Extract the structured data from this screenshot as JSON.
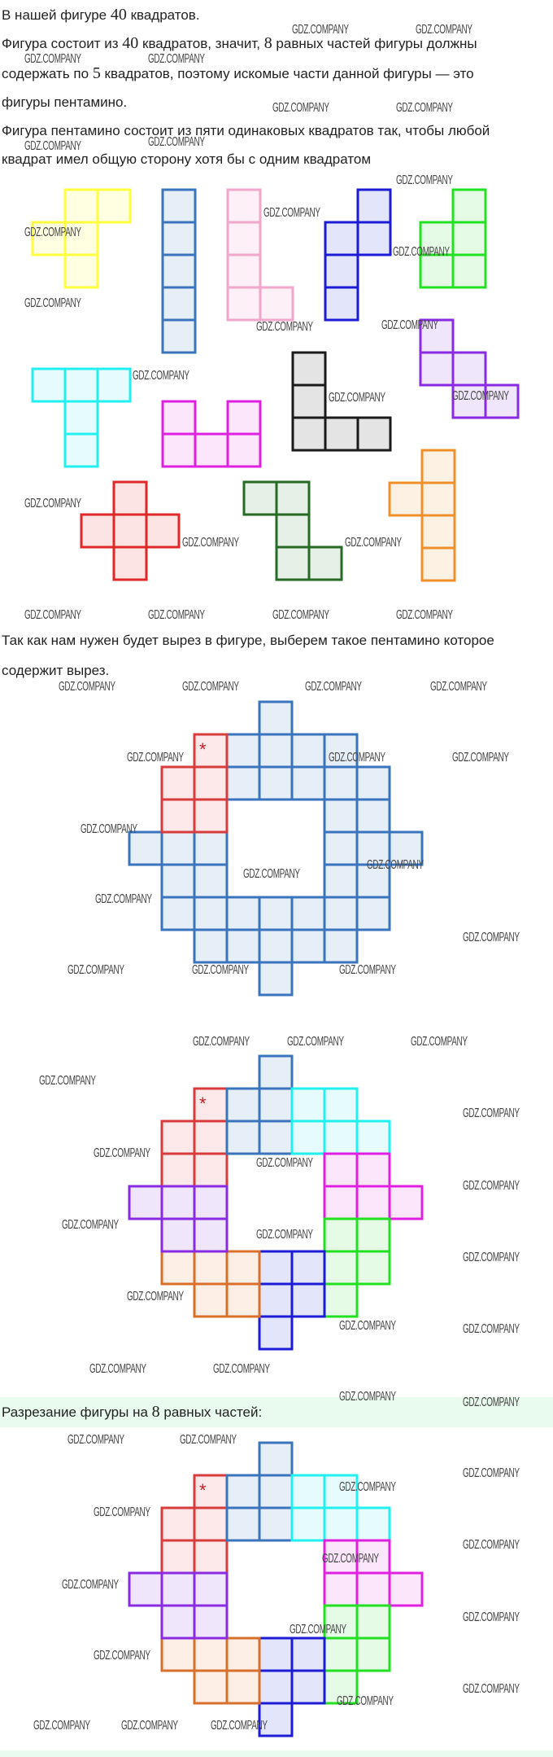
{
  "text": {
    "l1": {
      "a": "В нашей фигуре ",
      "n": "40",
      "b": " квадратов."
    },
    "l2": {
      "a": "Фигура состоит из ",
      "n1": "40",
      "b": " квадратов, значит, ",
      "n2": "8",
      "c": " равных частей фигуры должны"
    },
    "l3": {
      "a": "содержать по ",
      "n": "5",
      "b": " квадратов, поэтому искомые части данной фигуры — это"
    },
    "l4": "фигуры пентамино.",
    "l5": "Фигура пентамино состоит из пяти одинаковых квадратов так, чтобы любой",
    "l6": "квадрат имел общую сторону хотя бы с одним квадратом",
    "l7": "Так как нам нужен будет вырез в фигуре, выберем такое пентамино которое",
    "l8": "содержит вырез.",
    "l9": {
      "a": "Разрезание фигуры на ",
      "n": "8",
      "b": " равных частей:"
    }
  },
  "watermark": "GDZ.COMPANY",
  "marker": "*",
  "accent_band_color": "#e8fbee",
  "pentominoes": [
    {
      "name": "F",
      "stroke": "#ffff40",
      "fill": "#ffffe2",
      "cells": [
        [
          1,
          0
        ],
        [
          2,
          0
        ],
        [
          0,
          1
        ],
        [
          1,
          1
        ],
        [
          1,
          2
        ]
      ]
    },
    {
      "name": "I",
      "stroke": "#3a74bd",
      "fill": "#e6eef8",
      "cells": [
        [
          0,
          0
        ],
        [
          0,
          1
        ],
        [
          0,
          2
        ],
        [
          0,
          3
        ],
        [
          0,
          4
        ]
      ]
    },
    {
      "name": "L",
      "stroke": "#f2a6cc",
      "fill": "#fdf0f6",
      "cells": [
        [
          0,
          0
        ],
        [
          0,
          1
        ],
        [
          0,
          2
        ],
        [
          0,
          3
        ],
        [
          1,
          3
        ]
      ]
    },
    {
      "name": "N",
      "stroke": "#1c1cd6",
      "fill": "#e3e6fa",
      "cells": [
        [
          1,
          0
        ],
        [
          0,
          1
        ],
        [
          1,
          1
        ],
        [
          0,
          2
        ],
        [
          0,
          3
        ]
      ]
    },
    {
      "name": "P",
      "stroke": "#22e022",
      "fill": "#e6fbe6",
      "cells": [
        [
          1,
          0
        ],
        [
          0,
          1
        ],
        [
          1,
          1
        ],
        [
          0,
          2
        ],
        [
          1,
          2
        ]
      ]
    },
    {
      "name": "W",
      "stroke": "#8a2be2",
      "fill": "#f0e6fc",
      "cells": [
        [
          0,
          0
        ],
        [
          0,
          1
        ],
        [
          1,
          1
        ],
        [
          1,
          2
        ],
        [
          2,
          2
        ]
      ]
    },
    {
      "name": "T",
      "stroke": "#22f0f0",
      "fill": "#e6fcfc",
      "cells": [
        [
          0,
          0
        ],
        [
          1,
          0
        ],
        [
          2,
          0
        ],
        [
          1,
          1
        ],
        [
          1,
          2
        ]
      ]
    },
    {
      "name": "U",
      "stroke": "#e020e0",
      "fill": "#fce6fc",
      "cells": [
        [
          0,
          0
        ],
        [
          2,
          0
        ],
        [
          0,
          1
        ],
        [
          1,
          1
        ],
        [
          2,
          1
        ]
      ]
    },
    {
      "name": "V",
      "stroke": "#1a1a1a",
      "fill": "#e4e4e4",
      "cells": [
        [
          0,
          0
        ],
        [
          0,
          1
        ],
        [
          0,
          2
        ],
        [
          1,
          2
        ],
        [
          2,
          2
        ]
      ]
    },
    {
      "name": "X",
      "stroke": "#e02828",
      "fill": "#fce4e4",
      "cells": [
        [
          1,
          0
        ],
        [
          0,
          1
        ],
        [
          1,
          1
        ],
        [
          2,
          1
        ],
        [
          1,
          2
        ]
      ]
    },
    {
      "name": "Z",
      "stroke": "#256a25",
      "fill": "#e6f0e6",
      "cells": [
        [
          0,
          0
        ],
        [
          1,
          0
        ],
        [
          1,
          1
        ],
        [
          1,
          2
        ],
        [
          2,
          2
        ]
      ]
    },
    {
      "name": "Y",
      "stroke": "#f0902c",
      "fill": "#fdf1e3",
      "cells": [
        [
          1,
          0
        ],
        [
          0,
          1
        ],
        [
          1,
          1
        ],
        [
          1,
          2
        ],
        [
          1,
          3
        ]
      ]
    }
  ],
  "figure_pieces": [
    {
      "stroke": "#d83c3c",
      "fill": "#fde9e9",
      "cells": [
        [
          2,
          1
        ],
        [
          1,
          2
        ],
        [
          2,
          2
        ],
        [
          1,
          3
        ],
        [
          2,
          3
        ]
      ],
      "marked": true
    },
    {
      "stroke": "#3a74bd",
      "fill": "#e6eef8",
      "cells": [
        [
          4,
          0
        ],
        [
          3,
          1
        ],
        [
          4,
          1
        ],
        [
          3,
          2
        ],
        [
          4,
          2
        ]
      ]
    },
    {
      "stroke": "#22f0f0",
      "fill": "#e6fcfc",
      "cells": [
        [
          5,
          1
        ],
        [
          6,
          1
        ],
        [
          5,
          2
        ],
        [
          6,
          2
        ],
        [
          7,
          2
        ]
      ]
    },
    {
      "stroke": "#e020e0",
      "fill": "#fce6fc",
      "cells": [
        [
          6,
          3
        ],
        [
          7,
          3
        ],
        [
          6,
          4
        ],
        [
          7,
          4
        ],
        [
          8,
          4
        ]
      ]
    },
    {
      "stroke": "#22e022",
      "fill": "#e6fbe6",
      "cells": [
        [
          6,
          5
        ],
        [
          7,
          5
        ],
        [
          6,
          6
        ],
        [
          7,
          6
        ],
        [
          6,
          7
        ]
      ]
    },
    {
      "stroke": "#1c1cd6",
      "fill": "#e3e6fa",
      "cells": [
        [
          4,
          6
        ],
        [
          5,
          6
        ],
        [
          4,
          7
        ],
        [
          5,
          7
        ],
        [
          4,
          8
        ]
      ]
    },
    {
      "stroke": "#d8702c",
      "fill": "#fdeee6",
      "cells": [
        [
          1,
          6
        ],
        [
          2,
          6
        ],
        [
          3,
          6
        ],
        [
          2,
          7
        ],
        [
          3,
          7
        ]
      ]
    },
    {
      "stroke": "#8a2be2",
      "fill": "#f0e6fc",
      "cells": [
        [
          0,
          4
        ],
        [
          1,
          4
        ],
        [
          2,
          4
        ],
        [
          1,
          5
        ],
        [
          2,
          5
        ]
      ]
    }
  ],
  "figure_whole": {
    "stroke": "#3a74bd",
    "fill": "#e6eef8",
    "marked_piece_stroke": "#d83c3c",
    "marked_piece_fill": "#fde9e9"
  }
}
